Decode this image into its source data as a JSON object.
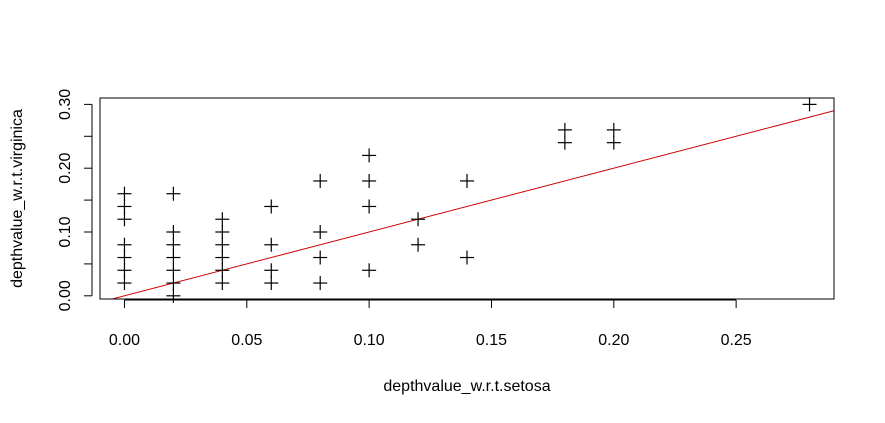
{
  "chart_data": {
    "type": "scatter",
    "title": "",
    "xlabel": "depthvalue_w.r.t.setosa",
    "ylabel": "depthvalue_w.r.t.virginica",
    "xlim": [
      -0.01,
      0.29
    ],
    "ylim": [
      -0.005,
      0.31
    ],
    "x_ticks": [
      0.0,
      0.05,
      0.1,
      0.15,
      0.2,
      0.25
    ],
    "x_tick_labels": [
      "0.00",
      "0.05",
      "0.10",
      "0.15",
      "0.20",
      "0.25"
    ],
    "y_ticks": [
      0.0,
      0.05,
      0.1,
      0.15,
      0.2,
      0.25,
      0.3
    ],
    "y_tick_labels": [
      "0.00",
      "",
      "0.10",
      "",
      "0.20",
      "",
      "0.30"
    ],
    "grid": false,
    "legend": "none",
    "marker": "plus",
    "point_color": "#000000",
    "line_color": "#cc0000",
    "reference_line": {
      "slope": 1,
      "intercept": 0
    },
    "points": [
      {
        "x": 0.0,
        "y": 0.02
      },
      {
        "x": 0.0,
        "y": 0.04
      },
      {
        "x": 0.0,
        "y": 0.06
      },
      {
        "x": 0.0,
        "y": 0.08
      },
      {
        "x": 0.0,
        "y": 0.12
      },
      {
        "x": 0.0,
        "y": 0.14
      },
      {
        "x": 0.0,
        "y": 0.16
      },
      {
        "x": 0.02,
        "y": 0.0
      },
      {
        "x": 0.02,
        "y": 0.02
      },
      {
        "x": 0.02,
        "y": 0.04
      },
      {
        "x": 0.02,
        "y": 0.06
      },
      {
        "x": 0.02,
        "y": 0.08
      },
      {
        "x": 0.02,
        "y": 0.1
      },
      {
        "x": 0.02,
        "y": 0.16
      },
      {
        "x": 0.04,
        "y": 0.02
      },
      {
        "x": 0.04,
        "y": 0.04
      },
      {
        "x": 0.04,
        "y": 0.06
      },
      {
        "x": 0.04,
        "y": 0.08
      },
      {
        "x": 0.04,
        "y": 0.1
      },
      {
        "x": 0.04,
        "y": 0.12
      },
      {
        "x": 0.06,
        "y": 0.02
      },
      {
        "x": 0.06,
        "y": 0.04
      },
      {
        "x": 0.06,
        "y": 0.08
      },
      {
        "x": 0.06,
        "y": 0.14
      },
      {
        "x": 0.08,
        "y": 0.02
      },
      {
        "x": 0.08,
        "y": 0.06
      },
      {
        "x": 0.08,
        "y": 0.1
      },
      {
        "x": 0.08,
        "y": 0.18
      },
      {
        "x": 0.1,
        "y": 0.04
      },
      {
        "x": 0.1,
        "y": 0.14
      },
      {
        "x": 0.1,
        "y": 0.18
      },
      {
        "x": 0.1,
        "y": 0.22
      },
      {
        "x": 0.12,
        "y": 0.08
      },
      {
        "x": 0.12,
        "y": 0.12
      },
      {
        "x": 0.14,
        "y": 0.06
      },
      {
        "x": 0.14,
        "y": 0.18
      },
      {
        "x": 0.18,
        "y": 0.24
      },
      {
        "x": 0.18,
        "y": 0.26
      },
      {
        "x": 0.2,
        "y": 0.24
      },
      {
        "x": 0.2,
        "y": 0.26
      },
      {
        "x": 0.28,
        "y": 0.3
      }
    ]
  }
}
